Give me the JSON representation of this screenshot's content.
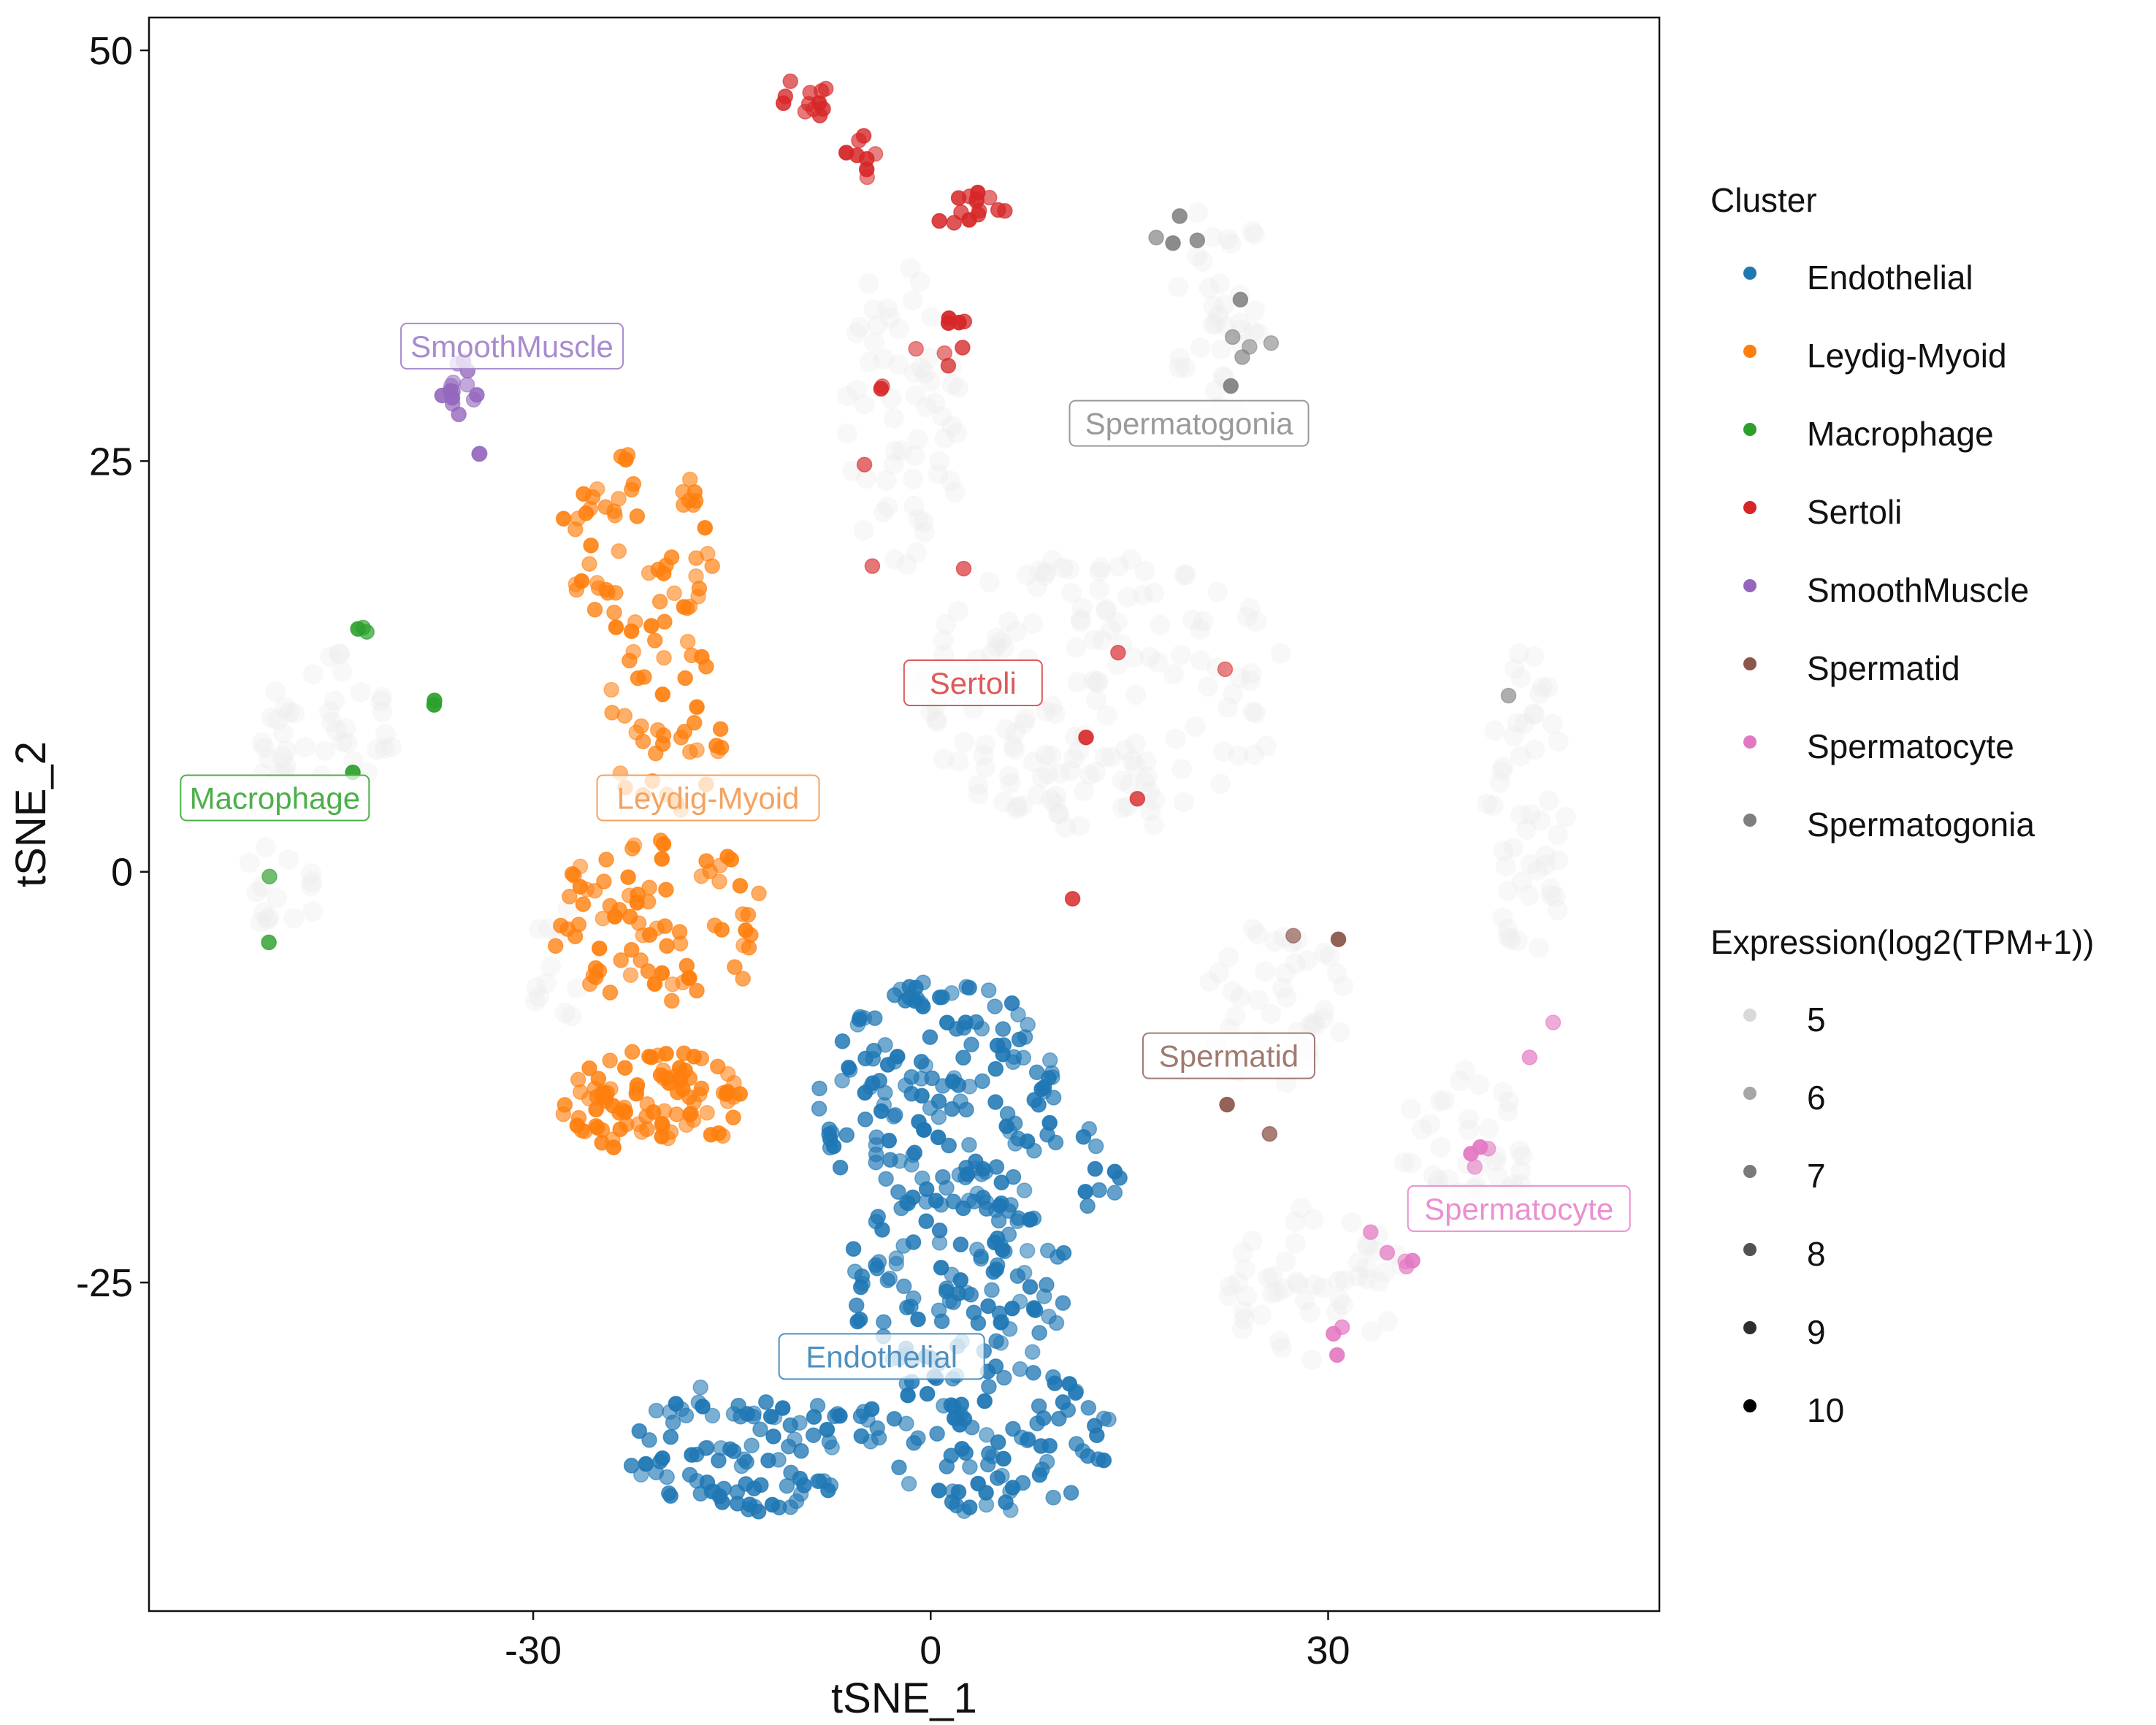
{
  "chart_data": {
    "type": "scatter",
    "xlabel": "tSNE_1",
    "ylabel": "tSNE_2",
    "xlim": [
      -59,
      55
    ],
    "ylim": [
      -45,
      52
    ],
    "xticks": [
      -30,
      0,
      30
    ],
    "yticks": [
      50,
      25,
      0,
      -25
    ],
    "xtick_labels": [
      "-30",
      "0",
      "30"
    ],
    "ytick_labels": [
      "50",
      "25",
      "0",
      "-25"
    ],
    "grid": false,
    "legend_position": "right",
    "color_legend": {
      "title": "Cluster",
      "entries": [
        {
          "name": "Endothelial",
          "color": "#1f77b4"
        },
        {
          "name": "Leydig-Myoid",
          "color": "#ff7f0e"
        },
        {
          "name": "Macrophage",
          "color": "#2ca02c"
        },
        {
          "name": "Sertoli",
          "color": "#d62728"
        },
        {
          "name": "SmoothMuscle",
          "color": "#9467bd"
        },
        {
          "name": "Spermatid",
          "color": "#8c564b"
        },
        {
          "name": "Spermatocyte",
          "color": "#e377c2"
        },
        {
          "name": "Spermatogonia",
          "color": "#7f7f7f"
        }
      ]
    },
    "size_legend": {
      "title": "Expression(log2(TPM+1))",
      "entries": [
        {
          "label": "5",
          "color": "#d9d9d9"
        },
        {
          "label": "6",
          "color": "#a6a6a6"
        },
        {
          "label": "7",
          "color": "#7a7a7a"
        },
        {
          "label": "8",
          "color": "#525252"
        },
        {
          "label": "9",
          "color": "#2e2e2e"
        },
        {
          "label": "10",
          "color": "#000000"
        }
      ]
    },
    "cluster_labels": [
      {
        "text": "Endothelial",
        "cluster": "Endothelial",
        "x": -3.7,
        "y": -29.5,
        "color": "#4f90c0"
      },
      {
        "text": "Leydig-Myoid",
        "cluster": "Leydig-Myoid",
        "x": -16.8,
        "y": 4.5,
        "color": "#f5a25f"
      },
      {
        "text": "Macrophage",
        "cluster": "Macrophage",
        "x": -49.5,
        "y": 4.5,
        "color": "#4daf4a"
      },
      {
        "text": "Sertoli",
        "cluster": "Sertoli",
        "x": 3.2,
        "y": 11.5,
        "color": "#dd5a5b"
      },
      {
        "text": "SmoothMuscle",
        "cluster": "SmoothMuscle",
        "x": -31.6,
        "y": 32.0,
        "color": "#a98bcf"
      },
      {
        "text": "Spermatid",
        "cluster": "Spermatid",
        "x": 22.5,
        "y": -11.2,
        "color": "#a07a70"
      },
      {
        "text": "Spermatocyte",
        "cluster": "Spermatocyte",
        "x": 44.4,
        "y": -20.5,
        "color": "#ea8fcf"
      },
      {
        "text": "Spermatogonia",
        "cluster": "Spermatogonia",
        "x": 19.5,
        "y": 27.3,
        "color": "#9a9a9a"
      }
    ],
    "series": [
      {
        "name": "Endothelial",
        "color": "#1f77b4",
        "regions": [
          {
            "cx": 1.0,
            "cy": -14.0,
            "rx": 9.5,
            "ry": 7.5,
            "n": 170
          },
          {
            "cx": 2.0,
            "cy": -25.0,
            "rx": 8.5,
            "ry": 6.0,
            "n": 110
          },
          {
            "cx": -14.0,
            "cy": -35.0,
            "rx": 9.0,
            "ry": 4.0,
            "n": 95
          },
          {
            "cx": 4.0,
            "cy": -34.5,
            "rx": 10.0,
            "ry": 4.5,
            "n": 95
          },
          {
            "cx": 12.5,
            "cy": -18.0,
            "rx": 2.0,
            "ry": 2.5,
            "n": 10
          }
        ]
      },
      {
        "name": "Leydig-Myoid",
        "color": "#ff7f0e",
        "regions": [
          {
            "cx": -22.0,
            "cy": 20.0,
            "rx": 6.0,
            "ry": 5.5,
            "n": 60
          },
          {
            "cx": -20.0,
            "cy": 9.0,
            "rx": 4.5,
            "ry": 5.5,
            "n": 40
          },
          {
            "cx": -20.0,
            "cy": -3.0,
            "rx": 9.0,
            "ry": 5.0,
            "n": 80
          },
          {
            "cx": -21.0,
            "cy": -14.0,
            "rx": 7.0,
            "ry": 3.2,
            "n": 95
          }
        ]
      },
      {
        "name": "Macrophage",
        "color": "#2ca02c",
        "regions": [
          {
            "cx": -43.0,
            "cy": 14.5,
            "rx": 0.7,
            "ry": 0.6,
            "n": 3
          },
          {
            "cx": -37.8,
            "cy": 10.3,
            "rx": 0.5,
            "ry": 0.4,
            "n": 2
          },
          {
            "cx": -43.5,
            "cy": 6.3,
            "rx": 0.4,
            "ry": 0.4,
            "n": 1
          },
          {
            "cx": -50.0,
            "cy": -0.1,
            "rx": 0.3,
            "ry": 0.3,
            "n": 1
          },
          {
            "cx": -50.2,
            "cy": -4.3,
            "rx": 0.3,
            "ry": 0.3,
            "n": 1
          }
        ]
      },
      {
        "name": "Sertoli",
        "color": "#d62728",
        "regions": [
          {
            "cx": -9.5,
            "cy": 47.0,
            "rx": 2.0,
            "ry": 1.5,
            "n": 12
          },
          {
            "cx": -4.5,
            "cy": 43.5,
            "rx": 2.0,
            "ry": 1.5,
            "n": 8
          },
          {
            "cx": 2.5,
            "cy": 40.5,
            "rx": 4.0,
            "ry": 1.2,
            "n": 14
          },
          {
            "cx": 0.5,
            "cy": 32.5,
            "rx": 2.5,
            "ry": 1.8,
            "n": 8
          },
          {
            "cx": -3.5,
            "cy": 29.5,
            "rx": 0.5,
            "ry": 0.5,
            "n": 2
          },
          {
            "cx": -5.0,
            "cy": 24.8,
            "rx": 0.3,
            "ry": 0.3,
            "n": 1
          },
          {
            "cx": -4.5,
            "cy": 18.5,
            "rx": 0.3,
            "ry": 0.3,
            "n": 1
          },
          {
            "cx": 2.5,
            "cy": 18.5,
            "rx": 0.3,
            "ry": 0.3,
            "n": 1
          },
          {
            "cx": 14.0,
            "cy": 13.5,
            "rx": 0.3,
            "ry": 0.3,
            "n": 1
          },
          {
            "cx": 22.5,
            "cy": 12.2,
            "rx": 0.3,
            "ry": 0.3,
            "n": 1
          },
          {
            "cx": 11.5,
            "cy": 8.2,
            "rx": 0.3,
            "ry": 0.3,
            "n": 1
          },
          {
            "cx": 15.5,
            "cy": 4.7,
            "rx": 0.3,
            "ry": 0.3,
            "n": 1
          },
          {
            "cx": 10.5,
            "cy": -1.6,
            "rx": 0.3,
            "ry": 0.3,
            "n": 1
          }
        ]
      },
      {
        "name": "SmoothMuscle",
        "color": "#9467bd",
        "regions": [
          {
            "cx": -35.5,
            "cy": 29.3,
            "rx": 1.4,
            "ry": 1.8,
            "n": 14
          },
          {
            "cx": -34.0,
            "cy": 25.6,
            "rx": 0.3,
            "ry": 0.4,
            "n": 2
          }
        ]
      },
      {
        "name": "Spermatid",
        "color": "#8c564b",
        "regions": [
          {
            "cx": 27.5,
            "cy": -4.0,
            "rx": 0.4,
            "ry": 0.3,
            "n": 1
          },
          {
            "cx": 30.5,
            "cy": -4.0,
            "rx": 0.4,
            "ry": 0.3,
            "n": 1
          },
          {
            "cx": 22.5,
            "cy": -14.0,
            "rx": 0.3,
            "ry": 0.3,
            "n": 1
          },
          {
            "cx": 25.5,
            "cy": -15.8,
            "rx": 0.3,
            "ry": 0.3,
            "n": 1
          }
        ]
      },
      {
        "name": "Spermatocyte",
        "color": "#e377c2",
        "regions": [
          {
            "cx": 47.0,
            "cy": -9.0,
            "rx": 0.3,
            "ry": 0.3,
            "n": 1
          },
          {
            "cx": 45.0,
            "cy": -11.5,
            "rx": 0.3,
            "ry": 0.3,
            "n": 1
          },
          {
            "cx": 41.5,
            "cy": -17.5,
            "rx": 1.2,
            "ry": 0.8,
            "n": 4
          },
          {
            "cx": 36.0,
            "cy": -23.5,
            "rx": 2.0,
            "ry": 1.0,
            "n": 4
          },
          {
            "cx": 33.0,
            "cy": -22.0,
            "rx": 0.3,
            "ry": 0.3,
            "n": 1
          },
          {
            "cx": 30.5,
            "cy": -28.5,
            "rx": 0.8,
            "ry": 1.2,
            "n": 3
          }
        ]
      },
      {
        "name": "Spermatogonia",
        "color": "#7f7f7f",
        "regions": [
          {
            "cx": 18.5,
            "cy": 38.5,
            "rx": 1.8,
            "ry": 2.0,
            "n": 4
          },
          {
            "cx": 24.0,
            "cy": 33.0,
            "rx": 2.0,
            "ry": 2.5,
            "n": 5
          },
          {
            "cx": 22.5,
            "cy": 29.5,
            "rx": 0.3,
            "ry": 0.3,
            "n": 1
          },
          {
            "cx": 43.5,
            "cy": 11.0,
            "rx": 0.3,
            "ry": 0.3,
            "n": 1
          }
        ]
      },
      {
        "name": "background",
        "color": "#ececec",
        "regions": [
          {
            "cx": 13.0,
            "cy": 11.0,
            "rx": 14.0,
            "ry": 8.5,
            "n": 160
          },
          {
            "cx": -2.0,
            "cy": 28.0,
            "rx": 4.5,
            "ry": 10.0,
            "n": 60
          },
          {
            "cx": 22.0,
            "cy": 34.0,
            "rx": 4.0,
            "ry": 7.0,
            "n": 35
          },
          {
            "cx": 45.0,
            "cy": 4.0,
            "rx": 3.0,
            "ry": 10.0,
            "n": 50
          },
          {
            "cx": 40.5,
            "cy": -16.5,
            "rx": 5.0,
            "ry": 5.0,
            "n": 40
          },
          {
            "cx": 29.0,
            "cy": -25.0,
            "rx": 7.0,
            "ry": 5.0,
            "n": 50
          },
          {
            "cx": 26.0,
            "cy": -8.0,
            "rx": 6.0,
            "ry": 5.0,
            "n": 40
          },
          {
            "cx": -46.0,
            "cy": 8.5,
            "rx": 5.5,
            "ry": 5.0,
            "n": 45
          },
          {
            "cx": -49.0,
            "cy": -1.0,
            "rx": 3.0,
            "ry": 3.0,
            "n": 15
          },
          {
            "cx": -28.0,
            "cy": -6.0,
            "rx": 2.5,
            "ry": 4.0,
            "n": 12
          }
        ]
      }
    ]
  }
}
